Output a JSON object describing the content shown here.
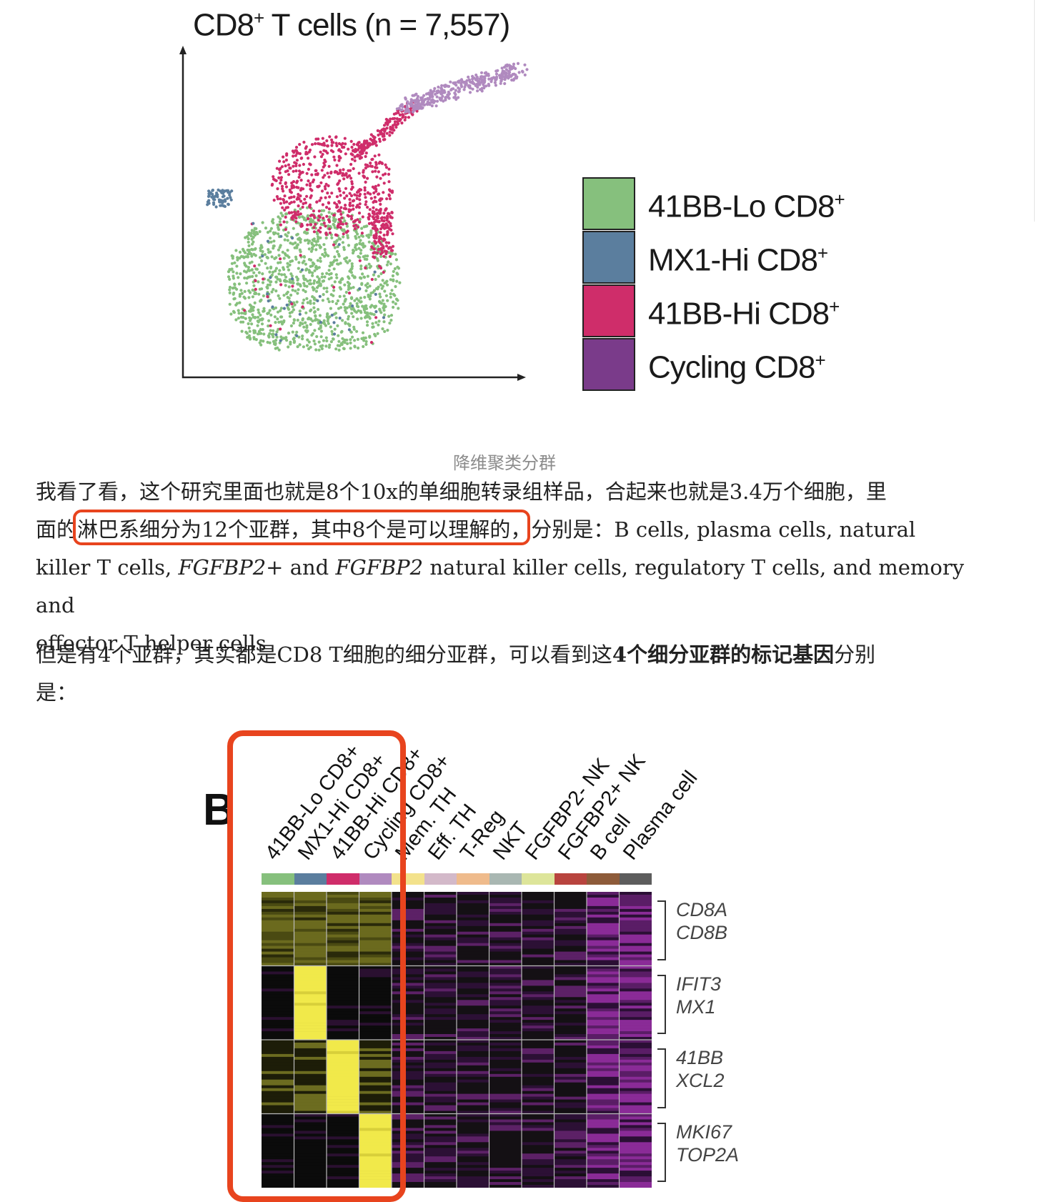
{
  "figure_a": {
    "title_main": "CD8",
    "title_sup": "+",
    "title_rest": " T cells (n = 7,557)",
    "legend": [
      {
        "label": "41BB-Lo CD8",
        "sup": "+",
        "color": "#86c07d"
      },
      {
        "label": "MX1-Hi CD8",
        "sup": "+",
        "color": "#5b7e9e"
      },
      {
        "label": "41BB-Hi CD8",
        "sup": "+",
        "color": "#cf2d6a"
      },
      {
        "label": "Cycling CD8",
        "sup": "+",
        "color": "#7a3b8a"
      }
    ],
    "caption": "降维聚类分群"
  },
  "paragraph1": {
    "line1": "我看了看，这个研究里面也就是8个10x的单细胞转录组样品，合起来也就是3.4万个细胞，里",
    "line2_pre": "面的",
    "line2_highlight": "淋巴系细分为12个亚群，其中8个是可以理解的",
    "line2_post": "，分别是：B cells, plasma cells, natural",
    "line3_a": "killer T cells, ",
    "line3_b": "FGFBP2",
    "line3_c": "+ and ",
    "line3_d": "FGFBP2",
    "line3_e": " natural killer cells, regulatory T cells, and memory and",
    "line4": "effector T helper cells"
  },
  "paragraph2": {
    "line1_pre": "但是有4个亚群，其实都是CD8 T细胞的细分亚群，可以看到这",
    "line1_bold": "4个细分亚群的标记基因",
    "line1_post": "分别",
    "line2": "是："
  },
  "figure_b": {
    "panel_letter": "B",
    "columns": [
      {
        "label": "41BB-Lo CD8+",
        "color": "#86c07d"
      },
      {
        "label": "MX1-Hi CD8+",
        "color": "#5b7e9e"
      },
      {
        "label": "41BB-Hi CD8+",
        "color": "#cf2d6a"
      },
      {
        "label": "Cycling CD8+",
        "color": "#b08abf"
      },
      {
        "label": "Mem. TH",
        "color": "#f3e28c"
      },
      {
        "label": "Eff. TH",
        "color": "#d3b9c9"
      },
      {
        "label": "T-Reg",
        "color": "#efbb8c"
      },
      {
        "label": "NKT",
        "color": "#a9b7b2"
      },
      {
        "label": "FGFBP2- NK",
        "color": "#dde59a"
      },
      {
        "label": "FGFBP2+ NK",
        "color": "#b8443e"
      },
      {
        "label": "B cell",
        "color": "#8d5b3a"
      },
      {
        "label": "Plasma cell",
        "color": "#5d5d5d"
      }
    ],
    "gene_groups": [
      {
        "genes": [
          "CD8A",
          "CD8B"
        ]
      },
      {
        "genes": [
          "IFIT3",
          "MX1"
        ]
      },
      {
        "genes": [
          "41BB",
          "XCL2"
        ]
      },
      {
        "genes": [
          "MKI67",
          "TOP2A"
        ]
      }
    ]
  }
}
